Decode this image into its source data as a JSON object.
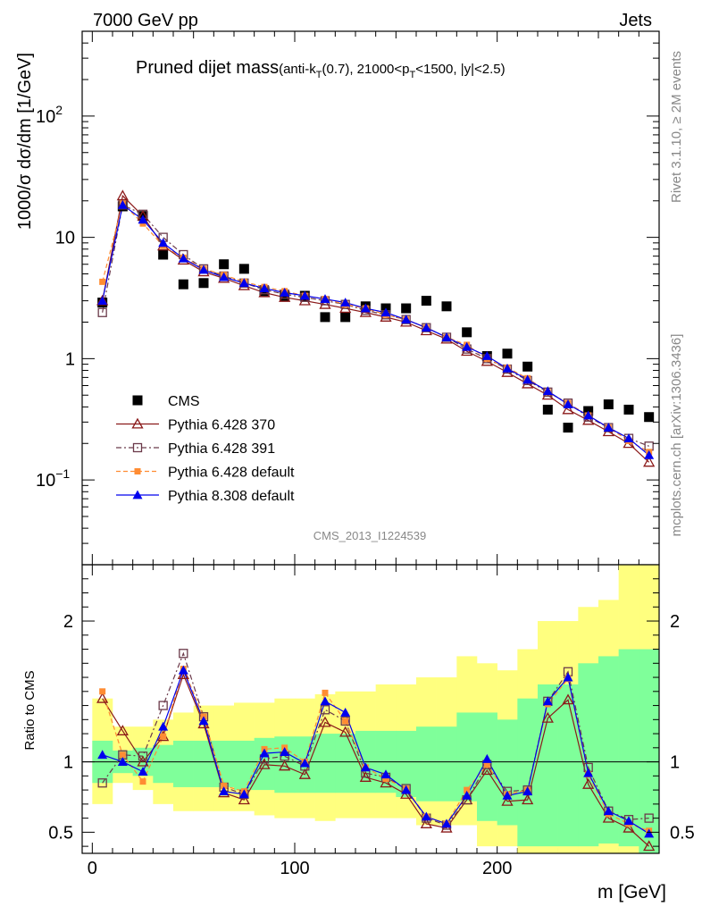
{
  "header": {
    "left": "7000 GeV pp",
    "right": "Jets"
  },
  "title": {
    "main": "Pruned dijet mass",
    "p1": "(anti-k",
    "sub_t": "T",
    "p2": "(0.7), 21000<p",
    "sub_t2": "T",
    "p3": "<1500, |y|<2.5)"
  },
  "side_labels": {
    "rivet": "Rivet 3.1.10, ≥ 2M events",
    "mcplots": "mcplots.cern.ch [arXiv:1306.3436]"
  },
  "analysis_id": "CMS_2013_I1224539",
  "colors": {
    "cms": "#000000",
    "p370": "#8b1a1a",
    "p391": "#6b3a4a",
    "p6def": "#ff8c33",
    "p8def": "#0000ee",
    "band_yellow": "#ffff7f",
    "band_green": "#7fff9a"
  },
  "chart_data": [
    {
      "type": "scatter",
      "title": "Pruned dijet mass",
      "ylabel": "1000/σ dσ/dm [1/GeV]",
      "xlabel": "",
      "yscale": "log",
      "xlim": [
        -5,
        280
      ],
      "ylim": [
        0.02,
        500
      ],
      "yticks": [
        {
          "value": 100,
          "base": "10",
          "exp": "2"
        },
        {
          "value": 10,
          "base": "10",
          "exp": ""
        },
        {
          "value": 1,
          "base": "1",
          "exp": ""
        },
        {
          "value": 0.1,
          "base": "10",
          "exp": "−1"
        }
      ],
      "x": [
        5,
        15,
        25,
        35,
        45,
        55,
        65,
        75,
        85,
        95,
        105,
        115,
        125,
        135,
        145,
        155,
        165,
        175,
        185,
        195,
        205,
        215,
        225,
        235,
        245,
        255,
        265,
        275
      ],
      "series": [
        {
          "name": "CMS",
          "key": "cms",
          "marker": "square-filled",
          "values": [
            2.9,
            18.0,
            15.0,
            7.2,
            4.1,
            4.2,
            6.0,
            5.5,
            3.6,
            3.3,
            3.3,
            2.2,
            2.2,
            2.7,
            2.6,
            2.6,
            3.0,
            2.7,
            1.65,
            1.05,
            1.1,
            0.86,
            0.38,
            0.27,
            0.37,
            0.42,
            0.38,
            0.33
          ]
        },
        {
          "name": "Pythia 6.428 370",
          "key": "p370",
          "marker": "triangle-open",
          "dash": "",
          "values": [
            3.0,
            22.0,
            15.0,
            8.5,
            6.5,
            5.2,
            4.6,
            4.0,
            3.5,
            3.2,
            3.0,
            2.8,
            2.6,
            2.4,
            2.2,
            2.0,
            1.7,
            1.45,
            1.15,
            0.95,
            0.77,
            0.62,
            0.5,
            0.38,
            0.31,
            0.25,
            0.2,
            0.14
          ]
        },
        {
          "name": "Pythia 6.428 391",
          "key": "p391",
          "marker": "square-open",
          "dash": "6,3,2,3",
          "values": [
            2.4,
            18.5,
            15.5,
            10.0,
            7.2,
            5.5,
            4.8,
            4.2,
            3.7,
            3.4,
            3.2,
            3.0,
            2.8,
            2.5,
            2.3,
            2.1,
            1.8,
            1.5,
            1.2,
            1.0,
            0.82,
            0.66,
            0.53,
            0.43,
            0.33,
            0.27,
            0.22,
            0.19
          ]
        },
        {
          "name": "Pythia 6.428 default",
          "key": "p6def",
          "marker": "square-small-filled",
          "dash": "5,3",
          "values": [
            4.3,
            19.0,
            13.0,
            8.5,
            6.8,
            5.5,
            4.9,
            4.3,
            3.9,
            3.6,
            3.3,
            3.1,
            2.8,
            2.6,
            2.3,
            2.1,
            1.8,
            1.5,
            1.3,
            1.0,
            0.84,
            0.69,
            0.53,
            0.43,
            0.34,
            0.27,
            0.21,
            0.17
          ]
        },
        {
          "name": "Pythia 8.308 default",
          "key": "p8def",
          "marker": "triangle-filled",
          "dash": "",
          "values": [
            3.0,
            18.5,
            14.0,
            9.0,
            6.7,
            5.4,
            4.7,
            4.2,
            3.8,
            3.5,
            3.3,
            3.1,
            2.9,
            2.6,
            2.4,
            2.1,
            1.8,
            1.5,
            1.25,
            1.05,
            0.83,
            0.67,
            0.54,
            0.42,
            0.34,
            0.27,
            0.22,
            0.16
          ]
        }
      ]
    },
    {
      "type": "line",
      "ylabel": "Ratio to CMS",
      "xlabel": "m [GeV]",
      "xlim": [
        -5,
        280
      ],
      "ylim": [
        0.35,
        2.4
      ],
      "yticks": [
        0.5,
        1,
        2
      ],
      "ytick_labels": [
        "0.5",
        "1",
        "2"
      ],
      "xticks": [
        0,
        100,
        200
      ],
      "xtick_labels": [
        "0",
        "100",
        "200"
      ],
      "reference_line": 1,
      "bands": {
        "x_edges": [
          0,
          10,
          20,
          30,
          40,
          50,
          60,
          70,
          80,
          90,
          100,
          110,
          120,
          130,
          140,
          150,
          160,
          170,
          180,
          190,
          200,
          210,
          220,
          230,
          240,
          250,
          260,
          270,
          280
        ],
        "yellow_low": [
          0.7,
          0.85,
          0.8,
          0.7,
          0.65,
          0.65,
          0.65,
          0.65,
          0.62,
          0.6,
          0.6,
          0.58,
          0.6,
          0.6,
          0.6,
          0.6,
          0.55,
          0.55,
          0.55,
          0.4,
          0.4,
          0.35,
          0.35,
          0.35,
          0.35,
          0.35,
          0.35,
          0.35
        ],
        "yellow_high": [
          1.45,
          1.25,
          1.25,
          1.3,
          1.35,
          1.4,
          1.4,
          1.42,
          1.42,
          1.45,
          1.45,
          1.48,
          1.5,
          1.5,
          1.55,
          1.55,
          1.6,
          1.6,
          1.75,
          1.7,
          1.65,
          1.8,
          2.0,
          2.0,
          2.1,
          2.15,
          2.4,
          2.4
        ],
        "green_low": [
          0.85,
          0.92,
          0.9,
          0.85,
          0.82,
          0.82,
          0.82,
          0.8,
          0.8,
          0.78,
          0.78,
          0.78,
          0.78,
          0.78,
          0.78,
          0.75,
          0.72,
          0.72,
          0.72,
          0.58,
          0.55,
          0.4,
          0.4,
          0.4,
          0.4,
          0.42,
          0.4,
          0.35
        ],
        "green_high": [
          1.15,
          1.08,
          1.1,
          1.12,
          1.15,
          1.15,
          1.15,
          1.15,
          1.17,
          1.18,
          1.18,
          1.2,
          1.2,
          1.22,
          1.22,
          1.22,
          1.25,
          1.25,
          1.35,
          1.35,
          1.3,
          1.45,
          1.55,
          1.55,
          1.7,
          1.75,
          1.8,
          1.8
        ]
      },
      "x": [
        5,
        15,
        25,
        35,
        45,
        55,
        65,
        75,
        85,
        95,
        105,
        115,
        125,
        135,
        145,
        155,
        165,
        175,
        185,
        195,
        205,
        215,
        225,
        235,
        245,
        255,
        265,
        275
      ],
      "series": [
        {
          "name": "Pythia 6.428 370",
          "key": "p370",
          "marker": "triangle-open",
          "dash": "",
          "values": [
            1.45,
            1.22,
            1.0,
            1.18,
            1.62,
            1.27,
            0.78,
            0.73,
            0.98,
            0.97,
            0.91,
            1.28,
            1.21,
            0.89,
            0.85,
            0.77,
            0.56,
            0.53,
            0.73,
            0.94,
            0.72,
            0.73,
            1.31,
            1.44,
            0.84,
            0.6,
            0.53,
            0.4
          ]
        },
        {
          "name": "Pythia 6.428 391",
          "key": "p391",
          "marker": "square-open",
          "dash": "6,3,2,3",
          "values": [
            0.85,
            1.05,
            1.04,
            1.4,
            1.77,
            1.32,
            0.82,
            0.77,
            1.02,
            1.04,
            0.97,
            1.37,
            1.29,
            0.92,
            0.89,
            0.81,
            0.6,
            0.55,
            0.73,
            0.98,
            0.79,
            0.8,
            1.43,
            1.64,
            0.96,
            0.65,
            0.59,
            0.6
          ]
        },
        {
          "name": "Pythia 6.428 default",
          "key": "p6def",
          "marker": "square-small-filled",
          "dash": "5,3",
          "values": [
            1.5,
            1.05,
            0.86,
            1.18,
            1.66,
            1.32,
            0.83,
            0.79,
            1.09,
            1.1,
            1.0,
            1.49,
            1.29,
            0.96,
            0.88,
            0.81,
            0.61,
            0.56,
            0.8,
            0.98,
            0.77,
            0.8,
            1.41,
            1.59,
            0.91,
            0.63,
            0.56,
            0.51
          ]
        },
        {
          "name": "Pythia 8.308 default",
          "key": "p8def",
          "marker": "triangle-filled",
          "dash": "",
          "values": [
            1.05,
            1.0,
            0.93,
            1.25,
            1.65,
            1.29,
            0.79,
            0.77,
            1.06,
            1.07,
            0.99,
            1.43,
            1.35,
            0.96,
            0.91,
            0.8,
            0.61,
            0.56,
            0.76,
            1.02,
            0.76,
            0.79,
            1.43,
            1.6,
            0.92,
            0.65,
            0.58,
            0.49
          ]
        }
      ]
    }
  ]
}
